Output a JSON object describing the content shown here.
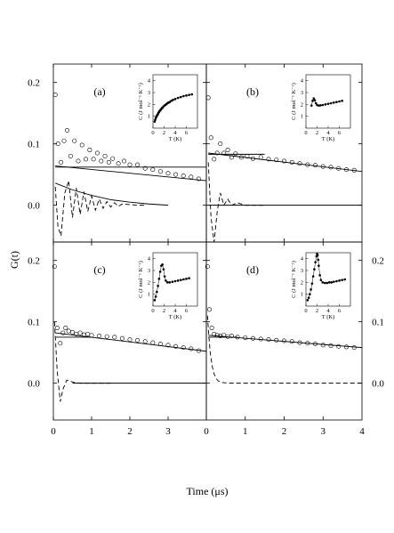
{
  "figure": {
    "ylabel": "G(t)",
    "xlabel": "Time (μs)"
  },
  "chart_data": [
    {
      "type": "scatter",
      "panel": "(a)",
      "xlabel": "",
      "ylabel": "G(t)",
      "xlim": [
        0,
        4
      ],
      "ylim": [
        -0.06,
        0.23
      ],
      "x_ticks": [
        "0",
        "1",
        "2",
        "3"
      ],
      "y_ticks": [
        "0.0",
        "0.1",
        "0.2"
      ],
      "data_points": {
        "x": [
          0.05,
          0.12,
          0.2,
          0.28,
          0.36,
          0.45,
          0.55,
          0.65,
          0.75,
          0.85,
          0.95,
          1.05,
          1.15,
          1.25,
          1.35,
          1.45,
          1.55,
          1.7,
          1.85,
          2.0,
          2.2,
          2.4,
          2.6,
          2.8,
          3.0,
          3.2,
          3.4,
          3.6,
          3.8
        ],
        "y": [
          0.18,
          0.1,
          0.07,
          0.105,
          0.122,
          0.08,
          0.105,
          0.072,
          0.098,
          0.075,
          0.09,
          0.075,
          0.085,
          0.072,
          0.08,
          0.07,
          0.076,
          0.068,
          0.072,
          0.066,
          0.066,
          0.06,
          0.058,
          0.055,
          0.052,
          0.05,
          0.048,
          0.046,
          0.043
        ]
      },
      "fit_line": {
        "x": [
          0.05,
          4.0
        ],
        "y": [
          0.064,
          0.04
        ],
        "style": "solid"
      },
      "baseline": {
        "x": [
          0.05,
          4.0
        ],
        "y": [
          0.062,
          0.062
        ],
        "style": "solid"
      },
      "decay_curve": {
        "x": [
          0.05,
          0.5,
          1.0,
          1.5,
          2.0,
          2.5,
          3.0
        ],
        "y": [
          0.036,
          0.025,
          0.016,
          0.009,
          0.005,
          0.002,
          0.0
        ],
        "style": "solid"
      },
      "oscillation": {
        "x": [
          0.05,
          0.12,
          0.2,
          0.3,
          0.4,
          0.5,
          0.6,
          0.7,
          0.8,
          0.9,
          1.0,
          1.1,
          1.2,
          1.3,
          1.4,
          1.5,
          1.6,
          1.7,
          1.8,
          2.0,
          2.2,
          2.4
        ],
        "y": [
          0.03,
          -0.035,
          -0.05,
          0.02,
          0.04,
          -0.02,
          0.028,
          -0.015,
          0.022,
          -0.01,
          0.015,
          -0.008,
          0.01,
          -0.005,
          0.006,
          -0.003,
          0.004,
          -0.002,
          0.002,
          0.001,
          0.0,
          0.0
        ],
        "style": "dashed"
      },
      "inset": {
        "type": "scatter",
        "xlabel": "T (K)",
        "ylabel": "C (J mol⁻¹ K⁻¹)",
        "xlim": [
          0,
          8
        ],
        "ylim": [
          0,
          4.5
        ],
        "x_ticks": [
          "0",
          "2",
          "4",
          "6"
        ],
        "y_ticks": [
          "1",
          "2",
          "3",
          "4"
        ],
        "x": [
          0.3,
          0.4,
          0.5,
          0.6,
          0.7,
          0.8,
          0.9,
          1.0,
          1.1,
          1.2,
          1.3,
          1.4,
          1.5,
          1.6,
          1.7,
          1.8,
          2.0,
          2.2,
          2.4,
          2.6,
          2.8,
          3.0,
          3.3,
          3.6,
          4.0,
          4.5,
          5.0,
          5.5,
          6.0,
          6.5,
          7.0
        ],
        "y": [
          0.55,
          0.7,
          0.85,
          0.95,
          1.05,
          1.12,
          1.2,
          1.3,
          1.37,
          1.45,
          1.5,
          1.55,
          1.62,
          1.68,
          1.72,
          1.78,
          1.88,
          1.95,
          2.02,
          2.1,
          2.15,
          2.2,
          2.3,
          2.38,
          2.45,
          2.55,
          2.62,
          2.7,
          2.75,
          2.8,
          2.85
        ]
      }
    },
    {
      "type": "scatter",
      "panel": "(b)",
      "xlabel": "",
      "ylabel": "",
      "xlim": [
        0,
        4
      ],
      "ylim": [
        -0.06,
        0.23
      ],
      "x_ticks": [],
      "y_ticks": [],
      "data_points": {
        "x": [
          0.05,
          0.12,
          0.2,
          0.28,
          0.36,
          0.45,
          0.55,
          0.65,
          0.75,
          0.9,
          1.05,
          1.2,
          1.4,
          1.6,
          1.8,
          2.0,
          2.2,
          2.4,
          2.6,
          2.8,
          3.0,
          3.2,
          3.4,
          3.6,
          3.8
        ],
        "y": [
          0.175,
          0.11,
          0.075,
          0.085,
          0.1,
          0.085,
          0.09,
          0.078,
          0.084,
          0.078,
          0.08,
          0.076,
          0.078,
          0.075,
          0.074,
          0.072,
          0.07,
          0.068,
          0.066,
          0.065,
          0.063,
          0.062,
          0.06,
          0.058,
          0.057
        ]
      },
      "fit_line": {
        "x": [
          0.05,
          4.0
        ],
        "y": [
          0.085,
          0.055
        ],
        "style": "solid"
      },
      "baseline": {
        "x": [
          0.05,
          1.5
        ],
        "y": [
          0.083,
          0.083
        ],
        "style": "solid"
      },
      "oscillation": {
        "x": [
          0.05,
          0.12,
          0.2,
          0.28,
          0.36,
          0.45,
          0.55,
          0.65,
          0.8,
          1.0,
          1.2,
          1.5
        ],
        "y": [
          0.07,
          -0.02,
          -0.06,
          -0.01,
          0.02,
          0.0,
          0.01,
          0.0,
          0.004,
          0.0,
          0.0,
          0.0
        ],
        "style": "dashed"
      },
      "zero_line": {
        "x": [
          0.05,
          4.0
        ],
        "y": [
          0.0,
          0.0
        ],
        "style": "solid"
      },
      "inset": {
        "type": "scatter",
        "xlabel": "T (K)",
        "ylabel": "C (J mol⁻¹ K⁻¹)",
        "xlim": [
          0,
          8
        ],
        "ylim": [
          0,
          4.5
        ],
        "x_ticks": [
          "0",
          "2",
          "4",
          "6"
        ],
        "y_ticks": [
          "1",
          "2",
          "3",
          "4"
        ],
        "x": [
          1.0,
          1.2,
          1.4,
          1.6,
          1.8,
          2.0,
          2.3,
          2.6,
          3.0,
          3.5,
          4.0,
          4.5,
          5.0,
          5.5,
          6.0,
          6.5
        ],
        "y": [
          1.9,
          2.3,
          2.5,
          2.35,
          2.1,
          1.95,
          1.9,
          1.92,
          1.95,
          2.0,
          2.05,
          2.1,
          2.15,
          2.2,
          2.25,
          2.3
        ]
      }
    },
    {
      "type": "scatter",
      "panel": "(c)",
      "xlabel": "",
      "ylabel": "G(t)",
      "xlim": [
        0,
        4
      ],
      "ylim": [
        -0.06,
        0.23
      ],
      "x_ticks": [
        "0",
        "1",
        "2",
        "3"
      ],
      "y_ticks": [
        "0.0",
        "0.1",
        "0.2"
      ],
      "data_points": {
        "x": [
          0.03,
          0.1,
          0.18,
          0.25,
          0.32,
          0.4,
          0.5,
          0.6,
          0.7,
          0.8,
          0.9,
          1.0,
          1.2,
          1.4,
          1.6,
          1.8,
          2.0,
          2.2,
          2.4,
          2.6,
          2.8,
          3.0,
          3.2,
          3.4,
          3.6,
          3.8
        ],
        "y": [
          0.19,
          0.09,
          0.065,
          0.082,
          0.09,
          0.085,
          0.083,
          0.08,
          0.082,
          0.079,
          0.08,
          0.078,
          0.077,
          0.076,
          0.075,
          0.073,
          0.071,
          0.07,
          0.068,
          0.066,
          0.064,
          0.062,
          0.06,
          0.058,
          0.056,
          0.053
        ]
      },
      "fit_line": {
        "x": [
          0.05,
          4.0
        ],
        "y": [
          0.082,
          0.052
        ],
        "style": "solid"
      },
      "baseline": {
        "x": [
          0.05,
          1.0
        ],
        "y": [
          0.075,
          0.075
        ],
        "style": "solid"
      },
      "oscillation": {
        "x": [
          0.03,
          0.1,
          0.18,
          0.25,
          0.35,
          0.45,
          0.55,
          0.7,
          0.9,
          1.2,
          1.5
        ],
        "y": [
          0.1,
          0.02,
          -0.03,
          -0.01,
          0.005,
          0.003,
          0.001,
          0.0,
          0.0,
          0.0,
          0.0
        ],
        "style": "dashed"
      },
      "zero_line": {
        "x": [
          0.5,
          4.0
        ],
        "y": [
          0.0,
          0.0
        ],
        "style": "solid"
      },
      "inset": {
        "type": "scatter",
        "xlabel": "T (K)",
        "ylabel": "C (J mol⁻¹ K⁻¹)",
        "xlim": [
          0,
          8
        ],
        "ylim": [
          0,
          4.5
        ],
        "x_ticks": [
          "0",
          "2",
          "4",
          "6"
        ],
        "y_ticks": [
          "1",
          "2",
          "3",
          "4"
        ],
        "x": [
          0.3,
          0.5,
          0.7,
          0.9,
          1.1,
          1.3,
          1.5,
          1.7,
          1.9,
          2.1,
          2.3,
          2.6,
          3.0,
          3.5,
          4.0,
          4.5,
          5.0,
          5.5,
          6.0,
          6.5
        ],
        "y": [
          0.5,
          0.8,
          1.2,
          1.7,
          2.3,
          2.9,
          3.4,
          3.5,
          3.1,
          2.5,
          2.15,
          2.0,
          2.0,
          2.05,
          2.1,
          2.15,
          2.2,
          2.25,
          2.3,
          2.35
        ]
      }
    },
    {
      "type": "scatter",
      "panel": "(d)",
      "xlabel": "",
      "ylabel": "",
      "xlim": [
        0,
        4
      ],
      "ylim": [
        -0.06,
        0.23
      ],
      "x_ticks": [
        "0",
        "1",
        "2",
        "3",
        "4"
      ],
      "y_ticks": [],
      "right_y_ticks": [
        "0.0",
        "0.1",
        "0.2"
      ],
      "data_points": {
        "x": [
          0.03,
          0.08,
          0.14,
          0.2,
          0.28,
          0.36,
          0.45,
          0.55,
          0.65,
          0.8,
          1.0,
          1.2,
          1.4,
          1.6,
          1.8,
          2.0,
          2.2,
          2.4,
          2.6,
          2.8,
          3.0,
          3.2,
          3.4,
          3.6,
          3.8
        ],
        "y": [
          0.19,
          0.12,
          0.09,
          0.08,
          0.078,
          0.077,
          0.078,
          0.076,
          0.077,
          0.075,
          0.074,
          0.073,
          0.072,
          0.071,
          0.07,
          0.069,
          0.068,
          0.066,
          0.065,
          0.064,
          0.062,
          0.061,
          0.06,
          0.059,
          0.058
        ]
      },
      "fit_line": {
        "x": [
          0.05,
          4.0
        ],
        "y": [
          0.078,
          0.058
        ],
        "style": "solid"
      },
      "baseline": {
        "x": [
          0.05,
          0.8
        ],
        "y": [
          0.075,
          0.075
        ],
        "style": "solid"
      },
      "oscillation": {
        "x": [
          0.03,
          0.06,
          0.1,
          0.15,
          0.2,
          0.25,
          0.3,
          0.4,
          0.6,
          1.0,
          2.0,
          3.0,
          4.0
        ],
        "y": [
          0.11,
          0.08,
          0.05,
          0.028,
          0.015,
          0.008,
          0.004,
          0.001,
          0.0,
          0.0,
          0.0,
          0.0,
          0.0
        ],
        "style": "dashed"
      },
      "inset": {
        "type": "scatter",
        "xlabel": "T (K)",
        "ylabel": "C (J mol⁻¹ K⁻¹)",
        "xlim": [
          0,
          8
        ],
        "ylim": [
          0,
          4.5
        ],
        "x_ticks": [
          "0",
          "2",
          "4",
          "6"
        ],
        "y_ticks": [
          "1",
          "2",
          "3",
          "4"
        ],
        "x": [
          0.3,
          0.5,
          0.7,
          0.9,
          1.1,
          1.3,
          1.5,
          1.7,
          1.9,
          2.0,
          2.1,
          2.2,
          2.3,
          2.5,
          2.7,
          3.0,
          3.4,
          3.8,
          4.2,
          4.6,
          5.0,
          5.5,
          6.0,
          6.5,
          7.0
        ],
        "y": [
          0.5,
          0.7,
          1.0,
          1.4,
          1.9,
          2.5,
          3.1,
          3.7,
          4.2,
          4.4,
          4.3,
          3.9,
          3.4,
          2.6,
          2.2,
          2.0,
          1.95,
          1.95,
          2.0,
          2.0,
          2.05,
          2.1,
          2.15,
          2.2,
          2.25
        ]
      }
    }
  ]
}
